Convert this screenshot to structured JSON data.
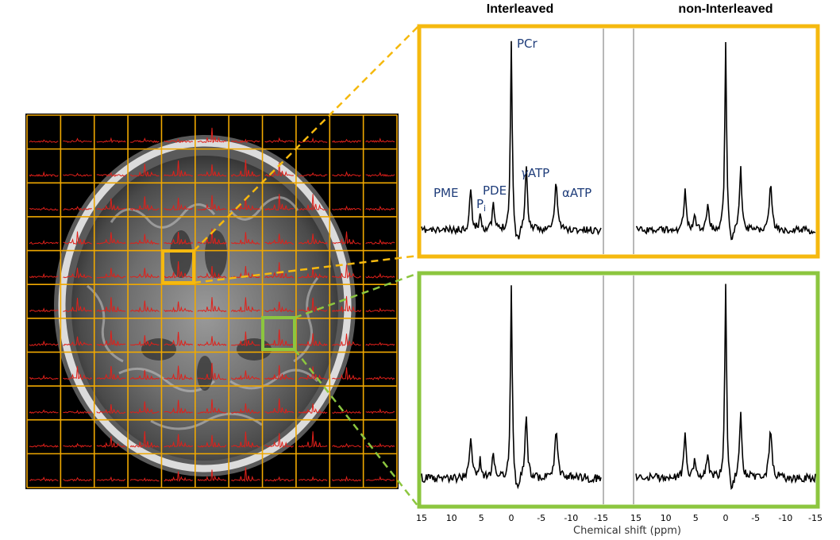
{
  "headers": {
    "left": "Interleaved",
    "right": "non-Interleaved"
  },
  "peak_labels": {
    "pme": "PME",
    "pi_main": "P",
    "pi_sub": "i",
    "pde": "PDE",
    "pcr": "PCr",
    "gamma_sym": "γ",
    "gamma_rest": "ATP",
    "alpha_sym": "α",
    "alpha_rest": "ATP"
  },
  "axis": {
    "label": "Chemical shift (ppm)",
    "ticks": [
      "15",
      "10",
      "5",
      "0",
      "-5",
      "-10",
      "-15"
    ]
  },
  "colors": {
    "orange_box": "#f5b90f",
    "green_box": "#8cc63f",
    "grid_lines": "#f0a800",
    "grid_spectra": "#e0201a",
    "spectrum": "#000000"
  },
  "grid": {
    "rows": 11,
    "cols": 11
  }
}
